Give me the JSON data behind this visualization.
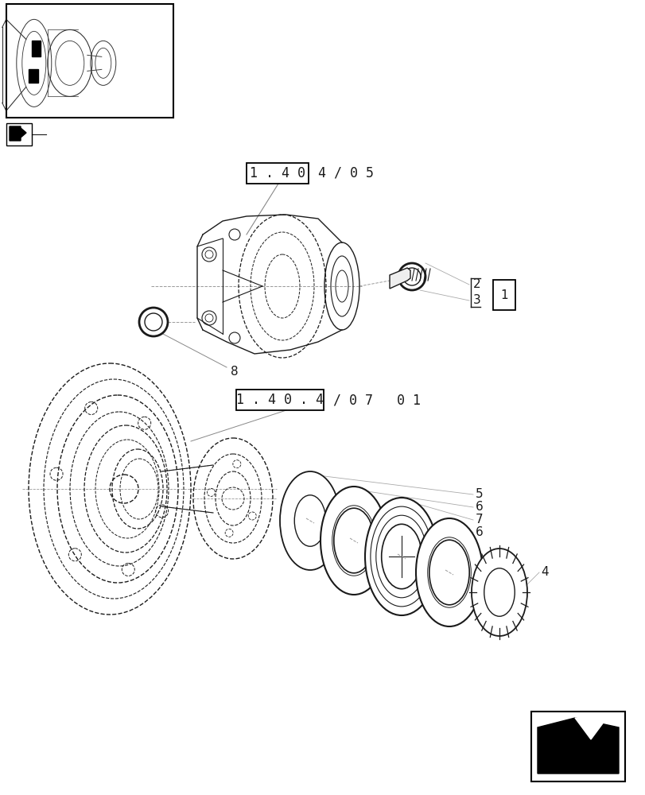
{
  "bg_color": "#ffffff",
  "lc": "#1a1a1a",
  "dc": "#999999",
  "ref1_boxed": "1 . 4 0",
  "ref1_plain": " 4 / 0 5",
  "ref2_boxed": "1 . 4 0 . 4",
  "ref2_plain": " / 0 7   0 1",
  "figsize": [
    8.12,
    10.0
  ],
  "dpi": 100
}
